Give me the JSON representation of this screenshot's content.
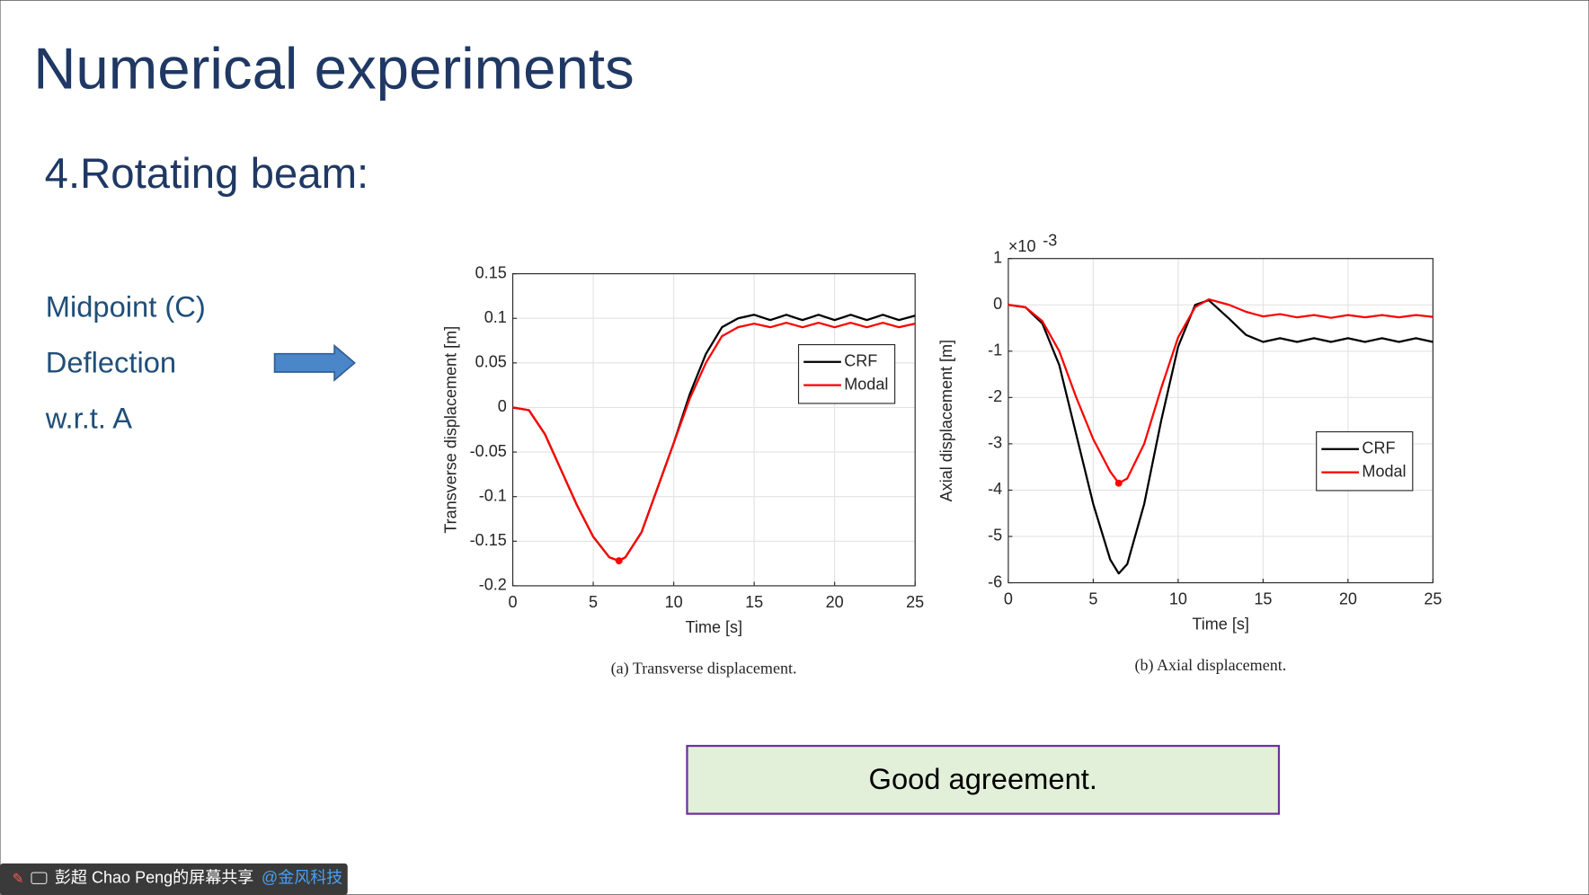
{
  "slide": {
    "title": "Numerical experiments",
    "subtitle": "4.Rotating beam:",
    "left_labels": [
      "Midpoint (C)",
      "Deflection",
      "w.r.t. A"
    ],
    "conclusion": "Good agreement."
  },
  "screen_share": {
    "presenter": "彭超 Chao Peng的屏幕共享",
    "org": "@金风科技"
  },
  "chart_data": [
    {
      "type": "line",
      "caption": "(a) Transverse displacement.",
      "xlabel": "Time [s]",
      "ylabel": "Transverse displacement [m]",
      "x": [
        0,
        1,
        2,
        3,
        4,
        5,
        6,
        6.6,
        7,
        8,
        9,
        10,
        11,
        12,
        13,
        14,
        15,
        16,
        17,
        18,
        19,
        20,
        21,
        22,
        23,
        24,
        25
      ],
      "series": [
        {
          "name": "CRF",
          "color": "#000000",
          "values": [
            0,
            -0.003,
            -0.03,
            -0.07,
            -0.11,
            -0.145,
            -0.168,
            -0.172,
            -0.168,
            -0.14,
            -0.09,
            -0.04,
            0.015,
            0.06,
            0.09,
            0.1,
            0.104,
            0.098,
            0.104,
            0.098,
            0.104,
            0.098,
            0.104,
            0.098,
            0.104,
            0.098,
            0.103
          ]
        },
        {
          "name": "Modal",
          "color": "#ff0000",
          "values": [
            0,
            -0.003,
            -0.03,
            -0.07,
            -0.11,
            -0.145,
            -0.168,
            -0.172,
            -0.168,
            -0.14,
            -0.09,
            -0.04,
            0.01,
            0.05,
            0.08,
            0.09,
            0.094,
            0.09,
            0.095,
            0.09,
            0.095,
            0.09,
            0.095,
            0.09,
            0.095,
            0.09,
            0.094
          ]
        }
      ],
      "min_marker_series": "Modal",
      "xlim": [
        0,
        25
      ],
      "xticks": [
        0,
        5,
        10,
        15,
        20,
        25
      ],
      "ylim": [
        -0.2,
        0.15
      ],
      "yticks": [
        -0.2,
        -0.15,
        -0.1,
        -0.05,
        0,
        0.05,
        0.1,
        0.15
      ],
      "grid": true,
      "legend": "upper right"
    },
    {
      "type": "line",
      "caption": "(b) Axial displacement.",
      "xlabel": "Time [s]",
      "ylabel": "Axial displacement [m]",
      "y_multiplier": {
        "base": "×10",
        "exponent": "-3"
      },
      "x": [
        0,
        1,
        2,
        3,
        4,
        5,
        6,
        6.5,
        7,
        8,
        9,
        10,
        11,
        11.8,
        13,
        14,
        15,
        16,
        17,
        18,
        19,
        20,
        21,
        22,
        23,
        24,
        25
      ],
      "series": [
        {
          "name": "CRF",
          "color": "#000000",
          "values": [
            0,
            -0.05,
            -0.4,
            -1.3,
            -2.8,
            -4.3,
            -5.5,
            -5.8,
            -5.6,
            -4.3,
            -2.5,
            -0.9,
            0,
            0.1,
            -0.3,
            -0.65,
            -0.8,
            -0.72,
            -0.8,
            -0.72,
            -0.8,
            -0.72,
            -0.8,
            -0.72,
            -0.8,
            -0.72,
            -0.8
          ]
        },
        {
          "name": "Modal",
          "color": "#ff0000",
          "values": [
            0,
            -0.05,
            -0.35,
            -1.0,
            -2.0,
            -2.9,
            -3.6,
            -3.85,
            -3.75,
            -3.0,
            -1.8,
            -0.7,
            -0.05,
            0.12,
            0,
            -0.15,
            -0.25,
            -0.2,
            -0.27,
            -0.22,
            -0.28,
            -0.22,
            -0.27,
            -0.22,
            -0.27,
            -0.22,
            -0.26
          ]
        }
      ],
      "min_marker_series": "Modal",
      "xlim": [
        0,
        25
      ],
      "xticks": [
        0,
        5,
        10,
        15,
        20,
        25
      ],
      "ylim": [
        -6,
        1
      ],
      "yticks": [
        -6,
        -5,
        -4,
        -3,
        -2,
        -1,
        0,
        1
      ],
      "grid": true,
      "legend": "center right"
    }
  ]
}
